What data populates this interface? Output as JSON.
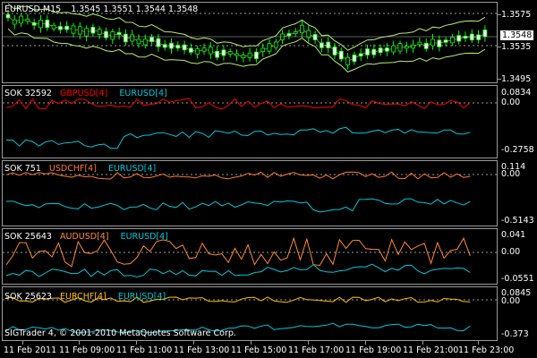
{
  "main_header": {
    "symbol": "EURUSD,M15",
    "ohlc": "1.3545 1.3551 1.3544 1.3548"
  },
  "main_axis": {
    "levels": [
      "1.3575",
      "1.3535",
      "1.3495"
    ],
    "current_price": "1.3548"
  },
  "indicators": [
    {
      "prefix": "SOK 32592",
      "ind1": "GBPUSD[4]",
      "ind2": "EURUSD[4]",
      "ind1_color": "#ff0000",
      "ind2_color": "#00c8d8",
      "axis_top": "0.0834",
      "axis_mid": "0.00",
      "axis_bottom": "-0.2758"
    },
    {
      "prefix": "SOK 751",
      "ind1": "USDCHF[4]",
      "ind2": "EURUSD[4]",
      "ind1_color": "#ff7a2e",
      "ind2_color": "#00c8d8",
      "axis_top": "0.114",
      "axis_mid": "0.00",
      "axis_bottom": "-0.5143"
    },
    {
      "prefix": "SOK 25643",
      "ind1": "AUDUSD[4]",
      "ind2": "EURUSD[4]",
      "ind1_color": "#ff8a2e",
      "ind2_color": "#00c8d8",
      "axis_top": "0.041",
      "axis_mid": "0.00",
      "axis_bottom": "-0.0551"
    },
    {
      "prefix": "SOK 25623",
      "ind1": "EURCHF[4]",
      "ind2": "EURUSD[4]",
      "ind1_color": "#ffc000",
      "ind2_color": "#00c8d8",
      "axis_top": "0.0845",
      "axis_mid": "0.00",
      "axis_bottom": "-0.373"
    }
  ],
  "copyright": "SIGTrader 4, © 2001-2010 MetaQuotes Software Corp.",
  "time_labels": [
    "11 Feb 2011",
    "11 Feb 09:00",
    "11 Feb 11:00",
    "11 Feb 13:00",
    "11 Feb 15:00",
    "11 Feb 17:00",
    "11 Feb 19:00",
    "11 Feb 21:00",
    "11 Feb 23:00"
  ],
  "colors": {
    "bull_candle": "#ffffff",
    "bear_candle": "#000000",
    "candle_outline": "#00ff00",
    "bands": "#b7ef6e",
    "grid": "#9a9a9a"
  }
}
